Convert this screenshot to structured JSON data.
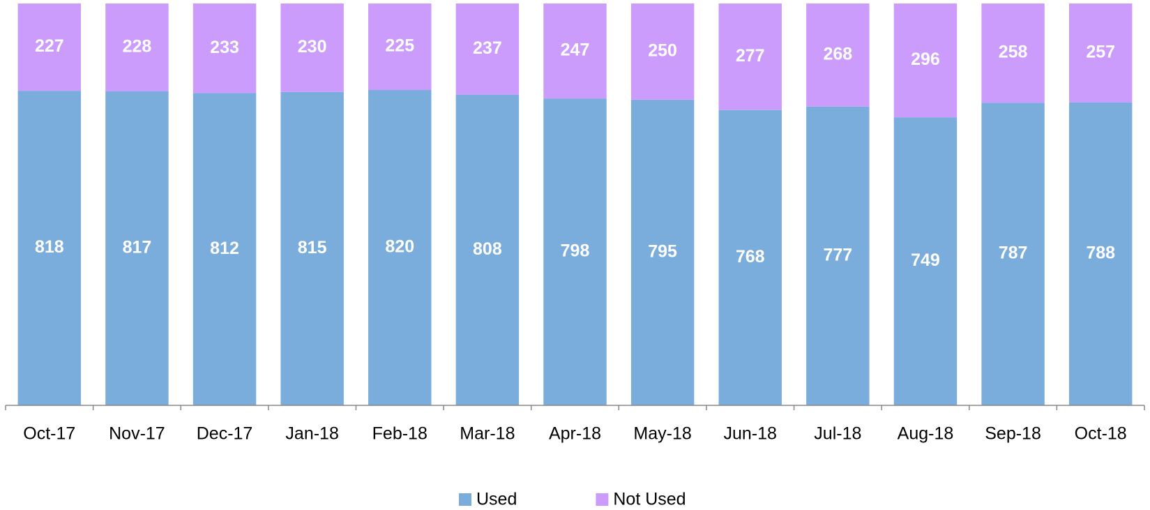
{
  "chart_data": {
    "type": "stacked-bar",
    "categories": [
      "Oct-17",
      "Nov-17",
      "Dec-17",
      "Jan-18",
      "Feb-18",
      "Mar-18",
      "Apr-18",
      "May-18",
      "Jun-18",
      "Jul-18",
      "Aug-18",
      "Sep-18",
      "Oct-18"
    ],
    "series": [
      {
        "name": "Used",
        "color": "#7aaddc",
        "values": [
          818,
          817,
          812,
          815,
          820,
          808,
          798,
          795,
          768,
          777,
          749,
          787,
          788
        ]
      },
      {
        "name": "Not Used",
        "color": "#cc9cfc",
        "values": [
          227,
          228,
          233,
          230,
          225,
          237,
          247,
          250,
          277,
          268,
          296,
          258,
          257
        ]
      }
    ],
    "ylim": [
      0,
      1045
    ],
    "legend": "bottom"
  }
}
